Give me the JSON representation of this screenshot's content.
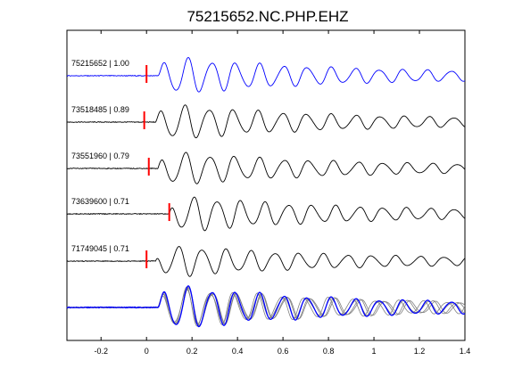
{
  "chart_data": {
    "type": "line",
    "title": "75215652.NC.PHP.EHZ",
    "xlabel": "",
    "ylabel": "",
    "xlim": [
      -0.35,
      1.4
    ],
    "xticks": [
      -0.2,
      0,
      0.2,
      0.4,
      0.6,
      0.8,
      1,
      1.2,
      1.4
    ],
    "xtick_labels": [
      "-0.2",
      "0",
      "0.2",
      "0.4",
      "0.6",
      "0.8",
      "1",
      "1.2",
      "1.4"
    ],
    "grid": false,
    "legend": "none",
    "series": [
      {
        "label": "75215652 | 1.00",
        "pick_time": 0.0,
        "onset": 0.05,
        "color": "#0000ff",
        "freq": 9.5,
        "phase": 0.0,
        "amp": 1.0
      },
      {
        "label": "73518485 | 0.89",
        "pick_time": -0.01,
        "onset": 0.04,
        "color": "#000000",
        "freq": 9.3,
        "phase": 0.4,
        "amp": 0.95
      },
      {
        "label": "73551960 | 0.79",
        "pick_time": 0.01,
        "onset": 0.05,
        "color": "#000000",
        "freq": 9.2,
        "phase": 0.9,
        "amp": 0.9
      },
      {
        "label": "73639600 | 0.71",
        "pick_time": 0.1,
        "onset": 0.1,
        "color": "#000000",
        "freq": 9.6,
        "phase": 1.4,
        "amp": 0.95
      },
      {
        "label": "71749045 | 0.71",
        "pick_time": 0.0,
        "onset": 0.04,
        "color": "#000000",
        "freq": 9.4,
        "phase": 2.0,
        "amp": 0.85
      }
    ],
    "stack_label": "",
    "colors": {
      "master": "#0000ff",
      "others": "#000000",
      "stack_others": "#808080",
      "pick": "#ff0000"
    }
  }
}
